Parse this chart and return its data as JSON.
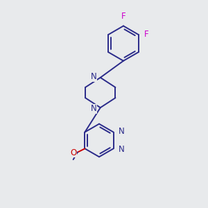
{
  "background_color": "#e8eaec",
  "bond_color": "#2a2a8a",
  "N_color": "#2a2a8a",
  "O_color": "#cc0000",
  "F_color": "#cc00cc",
  "line_width": 1.4,
  "font_size": 8.5,
  "fig_width": 3.0,
  "fig_height": 3.0,
  "dpi": 100,
  "xlim": [
    0.0,
    6.0
  ],
  "ylim": [
    0.0,
    8.5
  ]
}
